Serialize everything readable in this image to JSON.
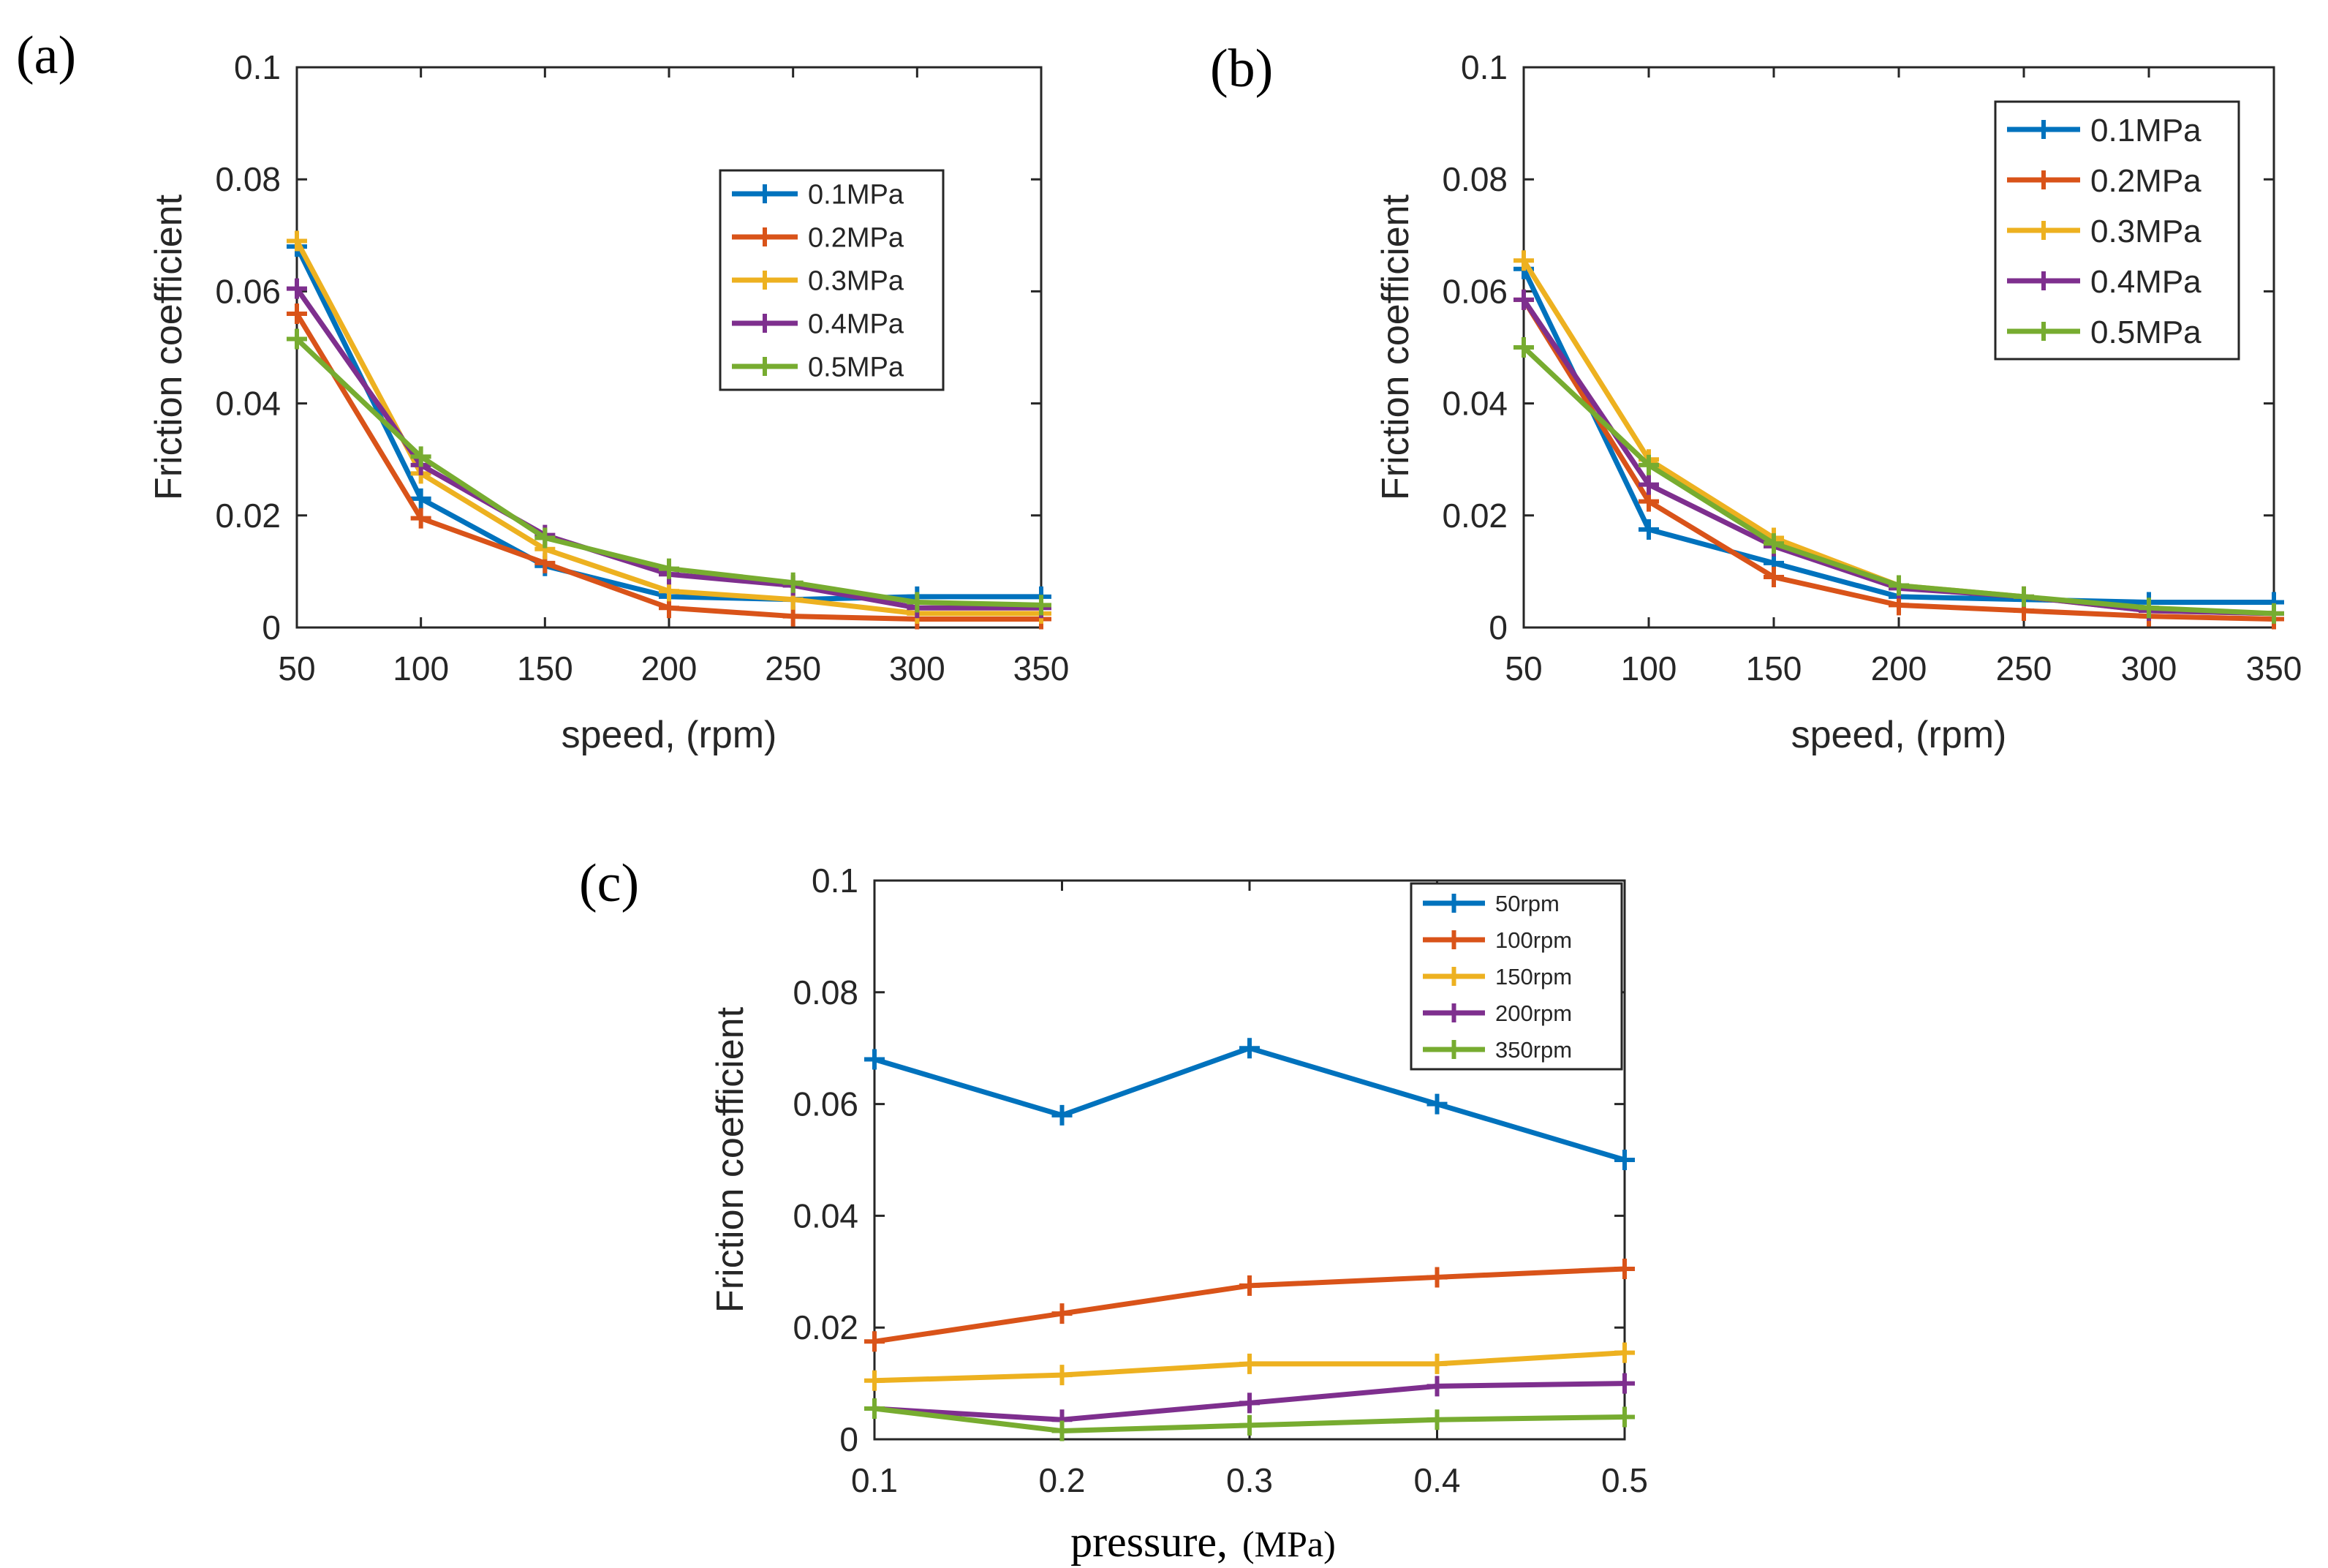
{
  "chart_data": [
    {
      "panel": "(a)",
      "type": "line",
      "title": "",
      "xlabel": "speed, (rpm)",
      "ylabel": "Friction coefficient",
      "x": [
        50,
        100,
        150,
        200,
        250,
        300,
        350
      ],
      "x_ticks": [
        "50",
        "100",
        "150",
        "200",
        "250",
        "300",
        "350"
      ],
      "y_ticks": [
        "0",
        "0.02",
        "0.04",
        "0.06",
        "0.08",
        "0.1"
      ],
      "xlim": [
        50,
        350
      ],
      "ylim": [
        0,
        0.1
      ],
      "legend_position": "upper-right-inside",
      "series": [
        {
          "name": "0.1MPa",
          "color": "#0072BD",
          "values": [
            0.068,
            0.023,
            0.011,
            0.0055,
            0.005,
            0.0055,
            0.0055
          ]
        },
        {
          "name": "0.2MPa",
          "color": "#D95319",
          "values": [
            0.056,
            0.0195,
            0.0115,
            0.0035,
            0.002,
            0.0015,
            0.0015
          ]
        },
        {
          "name": "0.3MPa",
          "color": "#EDB120",
          "values": [
            0.069,
            0.0275,
            0.014,
            0.0065,
            0.005,
            0.0025,
            0.0025
          ]
        },
        {
          "name": "0.4MPa",
          "color": "#7E2F8E",
          "values": [
            0.0605,
            0.029,
            0.0165,
            0.0095,
            0.0075,
            0.0035,
            0.0035
          ]
        },
        {
          "name": "0.5MPa",
          "color": "#77AC30",
          "values": [
            0.0515,
            0.0305,
            0.016,
            0.0105,
            0.008,
            0.0045,
            0.004
          ]
        }
      ]
    },
    {
      "panel": "(b)",
      "type": "line",
      "title": "",
      "xlabel": "speed, (rpm)",
      "ylabel": "Friction coefficient",
      "x": [
        50,
        100,
        150,
        200,
        250,
        300,
        350
      ],
      "x_ticks": [
        "50",
        "100",
        "150",
        "200",
        "250",
        "300",
        "350"
      ],
      "y_ticks": [
        "0",
        "0.02",
        "0.04",
        "0.06",
        "0.08",
        "0.1"
      ],
      "xlim": [
        50,
        350
      ],
      "ylim": [
        0,
        0.1
      ],
      "legend_position": "upper-right-inside",
      "series": [
        {
          "name": "0.1MPa",
          "color": "#0072BD",
          "values": [
            0.064,
            0.0175,
            0.0115,
            0.0055,
            0.005,
            0.0045,
            0.0045
          ]
        },
        {
          "name": "0.2MPa",
          "color": "#D95319",
          "values": [
            0.0585,
            0.0225,
            0.009,
            0.004,
            0.003,
            0.002,
            0.0015
          ]
        },
        {
          "name": "0.3MPa",
          "color": "#EDB120",
          "values": [
            0.0655,
            0.03,
            0.016,
            0.0075,
            0.0055,
            0.003,
            0.0025
          ]
        },
        {
          "name": "0.4MPa",
          "color": "#7E2F8E",
          "values": [
            0.0585,
            0.0255,
            0.0145,
            0.007,
            0.0055,
            0.003,
            0.0025
          ]
        },
        {
          "name": "0.5MPa",
          "color": "#77AC30",
          "values": [
            0.05,
            0.029,
            0.015,
            0.0075,
            0.0055,
            0.0035,
            0.0025
          ]
        }
      ]
    },
    {
      "panel": "(c)",
      "type": "line",
      "title": "",
      "xlabel_main": "pressure,",
      "xlabel_unit": "(MPa)",
      "ylabel": "Friction coefficient",
      "x": [
        0.1,
        0.2,
        0.3,
        0.4,
        0.5
      ],
      "x_ticks": [
        "0.1",
        "0.2",
        "0.3",
        "0.4",
        "0.5"
      ],
      "y_ticks": [
        "0",
        "0.02",
        "0.04",
        "0.06",
        "0.08",
        "0.1"
      ],
      "xlim": [
        0.1,
        0.5
      ],
      "ylim": [
        0,
        0.1
      ],
      "legend_position": "upper-right-inside",
      "series": [
        {
          "name": "50rpm",
          "color": "#0072BD",
          "values": [
            0.068,
            0.058,
            0.07,
            0.06,
            0.05
          ]
        },
        {
          "name": "100rpm",
          "color": "#D95319",
          "values": [
            0.0175,
            0.0225,
            0.0275,
            0.029,
            0.0305
          ]
        },
        {
          "name": "150rpm",
          "color": "#EDB120",
          "values": [
            0.0105,
            0.0115,
            0.0135,
            0.0135,
            0.0155
          ]
        },
        {
          "name": "200rpm",
          "color": "#7E2F8E",
          "values": [
            0.0055,
            0.0035,
            0.0065,
            0.0095,
            0.01
          ]
        },
        {
          "name": "350rpm",
          "color": "#77AC30",
          "values": [
            0.0055,
            0.0015,
            0.0025,
            0.0035,
            0.004
          ]
        }
      ]
    }
  ]
}
